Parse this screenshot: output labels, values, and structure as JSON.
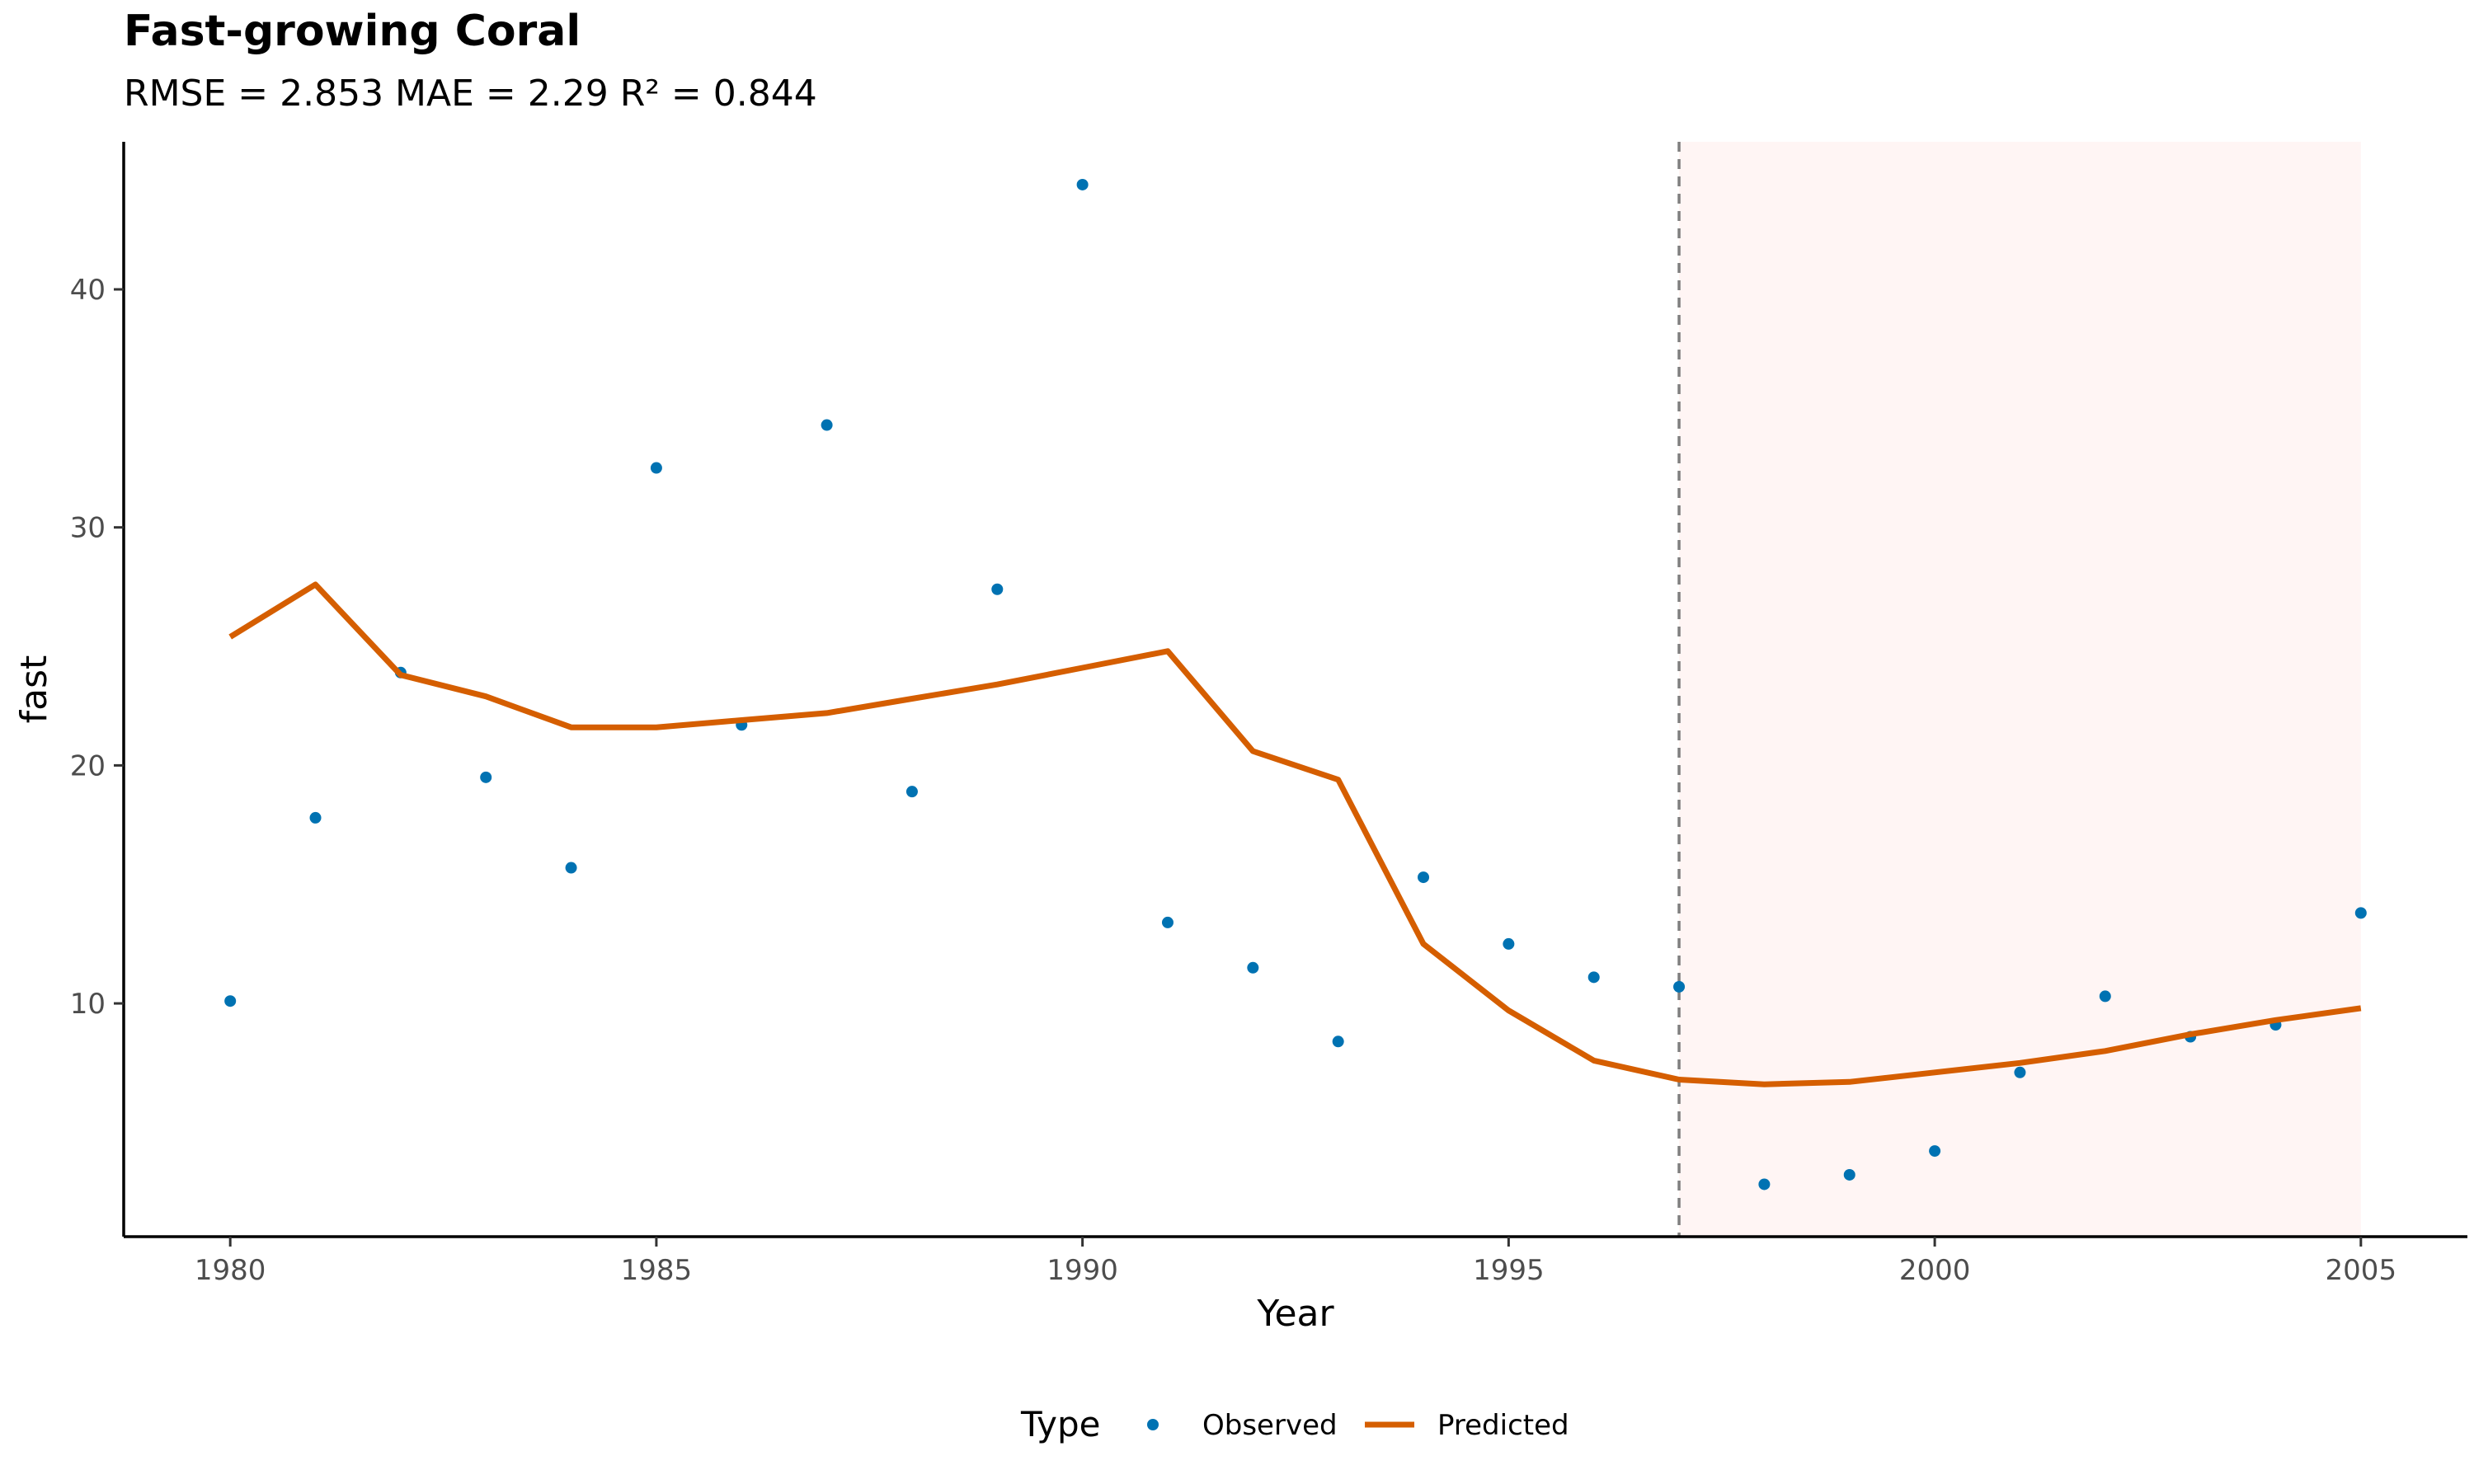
{
  "chart_data": {
    "type": "line",
    "title": "Fast-growing Coral",
    "subtitle": "RMSE = 2.853 MAE = 2.29 R² = 0.844",
    "xlabel": "Year",
    "ylabel": "fast",
    "xlim": [
      1978.75,
      2006.25
    ],
    "ylim": [
      0.2,
      46.2
    ],
    "x_ticks": [
      1980,
      1985,
      1990,
      1995,
      2000,
      2005
    ],
    "y_ticks": [
      10,
      20,
      30,
      40
    ],
    "grid": false,
    "legend": {
      "title": "Type",
      "position": "bottom"
    },
    "shaded_region": {
      "x_start": 1997,
      "x_end": 2005,
      "color": "#FFF5F4"
    },
    "vline": {
      "x": 1997,
      "color": "#7F7F7F",
      "style": "dashed"
    },
    "series": [
      {
        "name": "Observed",
        "kind": "points",
        "color": "#0072B2",
        "x": [
          1980,
          1981,
          1982,
          1983,
          1984,
          1985,
          1986,
          1987,
          1988,
          1989,
          1990,
          1991,
          1992,
          1993,
          1994,
          1995,
          1996,
          1997,
          1998,
          1999,
          2000,
          2001,
          2002,
          2003,
          2004,
          2005
        ],
        "y": [
          10.1,
          17.8,
          23.9,
          19.5,
          15.7,
          32.5,
          21.7,
          34.3,
          18.9,
          27.4,
          44.4,
          13.4,
          11.5,
          8.4,
          15.3,
          12.5,
          11.1,
          10.7,
          2.4,
          2.8,
          3.8,
          7.1,
          10.3,
          8.6,
          9.1,
          13.8
        ]
      },
      {
        "name": "Predicted",
        "kind": "line",
        "color": "#D55E00",
        "x": [
          1980,
          1981,
          1982,
          1983,
          1984,
          1985,
          1986,
          1987,
          1988,
          1989,
          1990,
          1991,
          1992,
          1993,
          1994,
          1995,
          1996,
          1997,
          1998,
          1999,
          2000,
          2001,
          2002,
          2003,
          2004,
          2005
        ],
        "y": [
          25.4,
          27.6,
          23.8,
          22.9,
          21.6,
          21.6,
          21.9,
          22.2,
          22.8,
          23.4,
          24.1,
          24.8,
          20.6,
          19.4,
          12.5,
          9.7,
          7.6,
          6.8,
          6.6,
          6.7,
          7.1,
          7.5,
          8.0,
          8.7,
          9.3,
          9.8
        ]
      }
    ]
  }
}
